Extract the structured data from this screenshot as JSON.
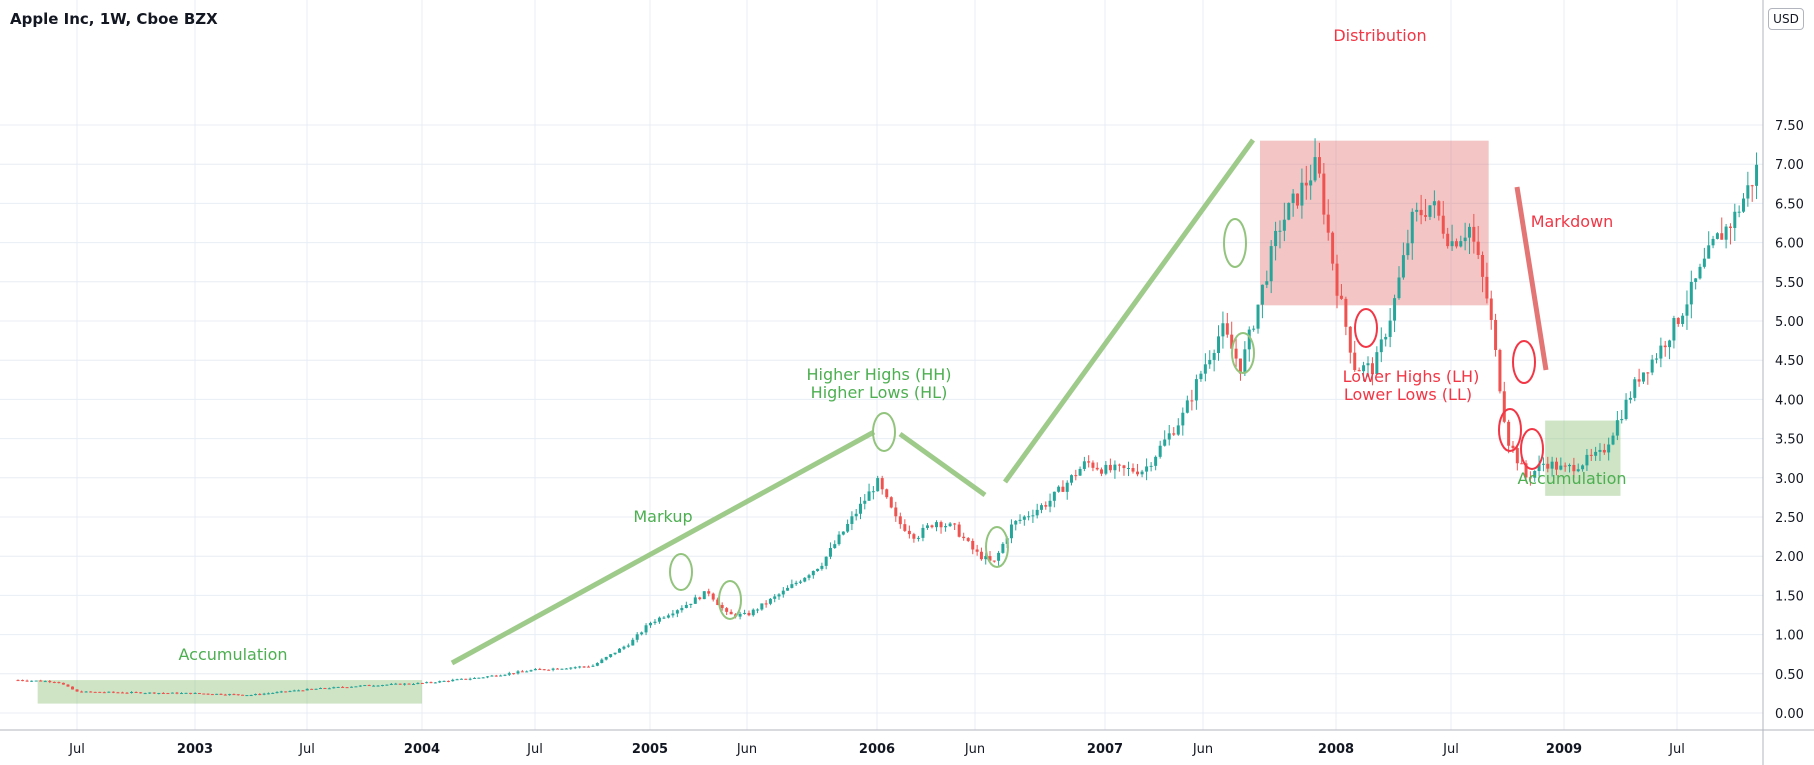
{
  "title": "Apple Inc, 1W, Cboe BZX",
  "currency": "USD",
  "colors": {
    "up": "#26a69a",
    "down": "#ef5350",
    "accumulation": "#93c47d",
    "distribution": "#e06666",
    "green_text": "#4caf50",
    "red_text": "#f23645",
    "grid": "#e8edf4",
    "axis_text": "#131722"
  },
  "chart_data": {
    "type": "candlestick",
    "y_ticks": [
      "0.00",
      "0.50",
      "1.00",
      "1.50",
      "2.00",
      "2.50",
      "3.00",
      "3.50",
      "4.00",
      "4.50",
      "5.00",
      "5.50",
      "6.00",
      "6.50",
      "7.00",
      "7.50"
    ],
    "x_ticks": [
      {
        "label": "Jul",
        "date": "2002-07"
      },
      {
        "label": "2003",
        "date": "2003-01"
      },
      {
        "label": "Jul",
        "date": "2003-07"
      },
      {
        "label": "2004",
        "date": "2004-01"
      },
      {
        "label": "Jul",
        "date": "2004-07"
      },
      {
        "label": "2005",
        "date": "2005-01"
      },
      {
        "label": "Jun",
        "date": "2005-06"
      },
      {
        "label": "2006",
        "date": "2006-01"
      },
      {
        "label": "Jun",
        "date": "2006-06"
      },
      {
        "label": "2007",
        "date": "2007-01"
      },
      {
        "label": "Jun",
        "date": "2007-06"
      },
      {
        "label": "2008",
        "date": "2008-01"
      },
      {
        "label": "Jul",
        "date": "2008-07"
      },
      {
        "label": "2009",
        "date": "2009-01"
      },
      {
        "label": "Jul",
        "date": "2009-07"
      }
    ],
    "ylim": [
      0,
      7.7
    ],
    "xlim": [
      "2002-04",
      "2009-12"
    ],
    "grid": true,
    "price_path": [
      [
        "2002-04",
        0.42
      ],
      [
        "2002-06",
        0.4
      ],
      [
        "2002-07",
        0.27
      ],
      [
        "2002-10",
        0.26
      ],
      [
        "2003-01",
        0.25
      ],
      [
        "2003-04",
        0.23
      ],
      [
        "2003-07",
        0.3
      ],
      [
        "2003-10",
        0.35
      ],
      [
        "2004-01",
        0.38
      ],
      [
        "2004-04",
        0.45
      ],
      [
        "2004-07",
        0.55
      ],
      [
        "2004-10",
        0.6
      ],
      [
        "2004-12",
        0.9
      ],
      [
        "2005-01",
        1.15
      ],
      [
        "2005-03",
        1.4
      ],
      [
        "2005-04",
        1.55
      ],
      [
        "2005-05",
        1.25
      ],
      [
        "2005-06",
        1.25
      ],
      [
        "2005-08",
        1.55
      ],
      [
        "2005-10",
        1.9
      ],
      [
        "2005-12",
        2.6
      ],
      [
        "2006-01",
        2.95
      ],
      [
        "2006-02",
        2.45
      ],
      [
        "2006-03",
        2.25
      ],
      [
        "2006-04",
        2.45
      ],
      [
        "2006-05",
        2.35
      ],
      [
        "2006-06",
        2.05
      ],
      [
        "2006-07",
        1.9
      ],
      [
        "2006-08",
        2.4
      ],
      [
        "2006-10",
        2.7
      ],
      [
        "2006-12",
        3.2
      ],
      [
        "2007-01",
        3.1
      ],
      [
        "2007-03",
        3.1
      ],
      [
        "2007-05",
        3.8
      ],
      [
        "2007-06",
        4.4
      ],
      [
        "2007-07",
        4.9
      ],
      [
        "2007-08",
        4.4
      ],
      [
        "2007-09",
        5.3
      ],
      [
        "2007-10",
        6.2
      ],
      [
        "2007-11",
        6.6
      ],
      [
        "2007-12",
        7.0
      ],
      [
        "2008-01",
        5.5
      ],
      [
        "2008-02",
        4.4
      ],
      [
        "2008-03",
        4.4
      ],
      [
        "2008-04",
        5.2
      ],
      [
        "2008-05",
        6.3
      ],
      [
        "2008-06",
        6.5
      ],
      [
        "2008-07",
        6.0
      ],
      [
        "2008-08",
        6.2
      ],
      [
        "2008-09",
        5.2
      ],
      [
        "2008-10",
        3.5
      ],
      [
        "2008-11",
        3.0
      ],
      [
        "2008-12",
        3.2
      ],
      [
        "2009-01",
        3.1
      ],
      [
        "2009-02",
        3.2
      ],
      [
        "2009-03",
        3.3
      ],
      [
        "2009-04",
        3.8
      ],
      [
        "2009-05",
        4.3
      ],
      [
        "2009-06",
        4.6
      ],
      [
        "2009-07",
        5.0
      ],
      [
        "2009-08",
        5.5
      ],
      [
        "2009-09",
        6.0
      ],
      [
        "2009-10",
        6.3
      ],
      [
        "2009-11",
        6.8
      ],
      [
        "2009-12",
        7.4
      ]
    ],
    "annotations": {
      "accumulation_1": "Accumulation",
      "markup": "Markup",
      "higher_highs": "Higher Highs (HH)",
      "higher_lows": "Higher Lows (HL)",
      "distribution": "Distribution",
      "markdown": "Markdown",
      "lower_highs": "Lower Highs (LH)",
      "lower_lows": "Lower Lows (LL)",
      "accumulation_2": "Accumulation"
    },
    "zones": [
      {
        "name": "accumulation",
        "x0": "2002-05",
        "x1": "2004-01",
        "y0": 0.12,
        "y1": 0.42,
        "color": "accumulation"
      },
      {
        "name": "distribution",
        "x0": "2007-09",
        "x1": "2008-09",
        "y0": 5.2,
        "y1": 7.3,
        "color": "distribution"
      },
      {
        "name": "accumulation",
        "x0": "2008-12",
        "x1": "2009-04",
        "y0": 2.77,
        "y1": 3.73,
        "color": "accumulation"
      }
    ]
  }
}
